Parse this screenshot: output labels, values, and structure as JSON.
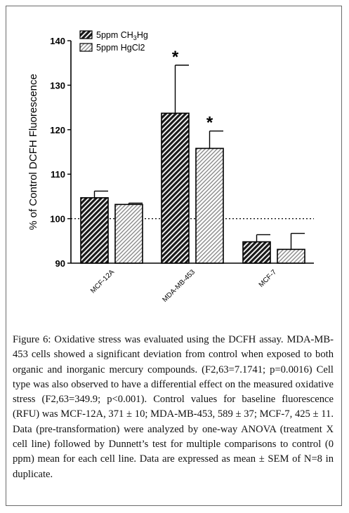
{
  "chart_data": {
    "type": "bar",
    "ylabel": "% of  Control DCFH Fluorescence",
    "ylim": [
      90,
      140
    ],
    "yticks": [
      90,
      100,
      110,
      120,
      130,
      140
    ],
    "categories": [
      "MCF-12A",
      "MDA-MB-453",
      "MCF-7"
    ],
    "reference_line": 100,
    "legend_position": "top-left",
    "series": [
      {
        "name_parts": [
          "5ppm CH",
          "3",
          "Hg"
        ],
        "pattern": "dense-hatch",
        "values": [
          104.7,
          123.7,
          94.8
        ],
        "errors": [
          1.5,
          10.8,
          1.6
        ],
        "significance": [
          "",
          "*",
          ""
        ]
      },
      {
        "name": "5ppm HgCl2",
        "pattern": "light-hatch",
        "values": [
          103.2,
          115.8,
          93.1
        ],
        "errors": [
          0.3,
          3.9,
          3.6
        ],
        "significance": [
          "",
          "*",
          ""
        ]
      }
    ],
    "colors": {
      "axis": "#000000",
      "bar_stroke": "#000000",
      "dense_hatch": "#1a1a1a",
      "light_hatch": "#8a8a8a"
    }
  },
  "caption": {
    "label": "Figure 6:",
    "text": " Oxidative stress was evaluated using the DCFH assay. MDA-MB-453 cells showed a significant deviation from control when exposed to both organic and inorganic mercury compounds. (F2,63=7.1741; p=0.0016) Cell type was also observed to have a differential effect on the measured oxidative stress (F2,63=349.9; p<0.001). Control values for baseline fluorescence (RFU) was MCF-12A, 371 ± 10; MDA-MB-453, 589 ± 37; MCF-7, 425 ± 11. Data (pre-transformation) were analyzed by one-way ANOVA (treatment X cell line) followed by Dunnett’s test for multiple comparisons to control (0 ppm) mean for each cell line. Data are expressed as mean ± SEM of N=8 in duplicate."
  }
}
